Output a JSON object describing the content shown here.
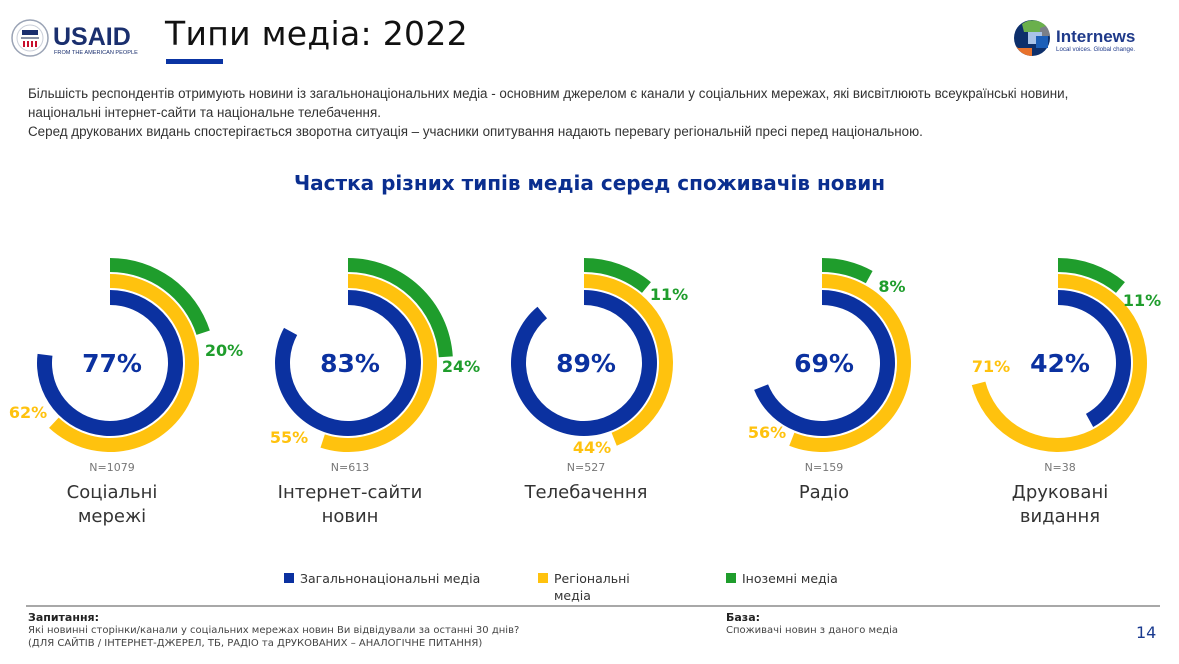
{
  "header": {
    "title": "Типи медіа: 2022",
    "usaid_logo_text": "USAID",
    "usaid_tagline": "FROM THE AMERICAN PEOPLE",
    "internews_logo_text": "Internews",
    "internews_tagline": "Local voices. Global change."
  },
  "intro": {
    "paragraph1": "Більшість респондентів отримують новини із загальнонаціональних медіа - основним джерелом є канали у соціальних мережах, які висвітлюють всеукраїнські новини, національні інтернет-сайти та національне телебачення.",
    "paragraph2": "Серед друкованих видань спостерігається зворотна ситуація – учасники опитування надають перевагу регіональній пресі перед національною."
  },
  "colors": {
    "national": "#0b31a0",
    "regional": "#ffc20e",
    "foreign": "#1f9d2c",
    "title_blue": "#0a2e8f"
  },
  "chart_data": {
    "type": "radial-bar",
    "title": "Частка різних типів медіа серед споживачів новин",
    "unit": "%",
    "full_circle_value": 100,
    "legend": [
      "Загальнонаціональні медіа",
      "Регіональні медіа",
      "Іноземні медіа"
    ],
    "legend_position": "bottom",
    "categories": [
      {
        "name_line1": "Соціальні",
        "name_line2": "мережі",
        "n": "N=1079"
      },
      {
        "name_line1": "Інтернет-сайти",
        "name_line2": "новин",
        "n": "N=613"
      },
      {
        "name_line1": "Телебачення",
        "name_line2": "",
        "n": "N=527"
      },
      {
        "name_line1": "Радіо",
        "name_line2": "",
        "n": "N=159"
      },
      {
        "name_line1": "Друковані",
        "name_line2": "видання",
        "n": "N=38"
      }
    ],
    "series": [
      {
        "name": "Загальнонаціональні медіа",
        "values": [
          77,
          83,
          89,
          69,
          42
        ],
        "labels": [
          "77%",
          "83%",
          "89%",
          "69%",
          "42%"
        ]
      },
      {
        "name": "Регіональні медіа",
        "values": [
          62,
          55,
          44,
          56,
          71
        ],
        "labels": [
          "62%",
          "55%",
          "44%",
          "56%",
          "71%"
        ]
      },
      {
        "name": "Іноземні медіа",
        "values": [
          20,
          24,
          11,
          8,
          11
        ],
        "labels": [
          "20%",
          "24%",
          "11%",
          "8%",
          "11%"
        ]
      }
    ]
  },
  "legend": {
    "national": "Загальнонаціональні медіа",
    "regional_line1": "Регіональні",
    "regional_line2": "медіа",
    "foreign": "Іноземні медіа"
  },
  "footer": {
    "question_heading": "Запитання:",
    "question_line1": "Які новинні сторінки/канали у соціальних мережах новин Ви відвідували за останні 30 днів?",
    "question_line2": "(ДЛЯ САЙТІВ / ІНТЕРНЕТ-ДЖЕРЕЛ, ТБ, РАДІО та ДРУКОВАНИХ – АНАЛОГІЧНЕ ПИТАННЯ)",
    "base_heading": "База:",
    "base_text": "Споживачі новин з даного медіа",
    "page_number": "14"
  }
}
